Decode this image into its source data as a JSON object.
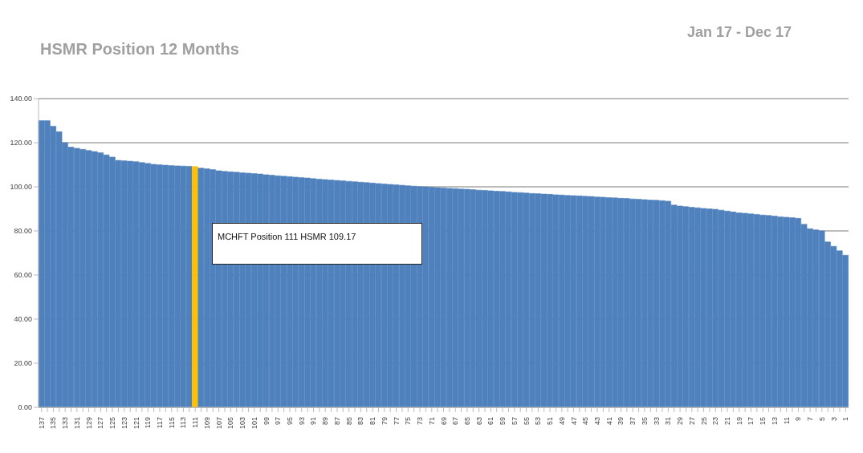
{
  "chart_data": {
    "type": "bar",
    "title": "HSMR Position 12 Months",
    "subtitle": "Jan 17 - Dec 17",
    "annotations": [
      "MCHFT Position 111 HSMR 109.17"
    ],
    "categories": [
      "137",
      null,
      "135",
      null,
      "133",
      null,
      "131",
      null,
      "129",
      null,
      "127",
      null,
      "125",
      null,
      "123",
      null,
      "121",
      null,
      "119",
      null,
      "117",
      null,
      "115",
      null,
      "113",
      null,
      "111",
      null,
      "109",
      null,
      "107",
      null,
      "105",
      null,
      "103",
      null,
      "101",
      null,
      "99",
      null,
      "97",
      null,
      "95",
      null,
      "93",
      null,
      "91",
      null,
      "89",
      null,
      "87",
      null,
      "85",
      null,
      "83",
      null,
      "81",
      null,
      "79",
      null,
      "77",
      null,
      "75",
      null,
      "73",
      null,
      "71",
      null,
      "69",
      null,
      "67",
      null,
      "65",
      null,
      "63",
      null,
      "61",
      null,
      "59",
      null,
      "57",
      null,
      "55",
      null,
      "53",
      null,
      "51",
      null,
      "49",
      null,
      "47",
      null,
      "45",
      null,
      "43",
      null,
      "41",
      null,
      "39",
      null,
      "37",
      null,
      "35",
      null,
      "33",
      null,
      "31",
      null,
      "29",
      null,
      "27",
      null,
      "25",
      null,
      "23",
      null,
      "21",
      null,
      "19",
      null,
      "17",
      null,
      "15",
      null,
      "13",
      null,
      "11",
      null,
      "9",
      null,
      "7",
      null,
      "5",
      null,
      "3",
      null,
      "1"
    ],
    "values": [
      130,
      130,
      127.5,
      125,
      120,
      118,
      117.5,
      117,
      116.5,
      116,
      115.5,
      114.5,
      113.5,
      112,
      111.8,
      111.6,
      111.4,
      111,
      110.6,
      110.2,
      110,
      109.8,
      109.6,
      109.5,
      109.4,
      109.3,
      109.17,
      108.5,
      108.2,
      107.8,
      107.3,
      107,
      106.8,
      106.6,
      106.4,
      106.2,
      106,
      105.8,
      105.5,
      105.3,
      105,
      104.8,
      104.6,
      104.4,
      104.2,
      104,
      103.7,
      103.5,
      103.3,
      103.1,
      102.9,
      102.7,
      102.5,
      102.3,
      102.1,
      101.9,
      101.7,
      101.5,
      101.3,
      101.1,
      100.9,
      100.7,
      100.5,
      100.3,
      100.1,
      100,
      99.8,
      99.6,
      99.5,
      99.3,
      99.2,
      99,
      98.9,
      98.7,
      98.5,
      98.4,
      98.2,
      98,
      97.9,
      97.7,
      97.5,
      97.4,
      97.2,
      97,
      96.9,
      96.7,
      96.6,
      96.4,
      96.3,
      96.1,
      96,
      95.9,
      95.7,
      95.6,
      95.4,
      95.3,
      95.1,
      95,
      94.8,
      94.7,
      94.5,
      94.4,
      94.2,
      94,
      93.9,
      93.7,
      93.5,
      91.7,
      91.3,
      91,
      90.7,
      90.5,
      90.2,
      90,
      89.8,
      89.4,
      89,
      88.6,
      88.2,
      88,
      87.7,
      87.5,
      87.2,
      87,
      86.7,
      86.4,
      86.2,
      86,
      85.7,
      83,
      81,
      80.5,
      80,
      75,
      73,
      71,
      69
    ],
    "colors": [
      "#4f81bd",
      "#4f81bd",
      "#4f81bd",
      "#4f81bd",
      "#4f81bd",
      "#4f81bd",
      "#4f81bd",
      "#4f81bd",
      "#4f81bd",
      "#4f81bd",
      "#4f81bd",
      "#4f81bd",
      "#4f81bd",
      "#4f81bd",
      "#4f81bd",
      "#4f81bd",
      "#4f81bd",
      "#4f81bd",
      "#4f81bd",
      "#4f81bd",
      "#4f81bd",
      "#4f81bd",
      "#4f81bd",
      "#4f81bd",
      "#4f81bd",
      "#4f81bd",
      "#ffc000",
      "#4f81bd",
      "#4f81bd",
      "#4f81bd",
      "#4f81bd",
      "#4f81bd",
      "#4f81bd",
      "#4f81bd",
      "#4f81bd",
      "#4f81bd",
      "#4f81bd",
      "#4f81bd",
      "#4f81bd",
      "#4f81bd",
      "#4f81bd",
      "#4f81bd",
      "#4f81bd",
      "#4f81bd",
      "#4f81bd",
      "#4f81bd",
      "#4f81bd",
      "#4f81bd",
      "#4f81bd",
      "#4f81bd",
      "#4f81bd",
      "#4f81bd",
      "#4f81bd",
      "#4f81bd",
      "#4f81bd",
      "#4f81bd",
      "#4f81bd",
      "#4f81bd",
      "#4f81bd",
      "#4f81bd",
      "#4f81bd",
      "#4f81bd",
      "#4f81bd",
      "#4f81bd",
      "#4f81bd",
      "#4f81bd",
      "#4f81bd",
      "#4f81bd",
      "#4f81bd",
      "#4f81bd",
      "#4f81bd",
      "#4f81bd",
      "#4f81bd",
      "#4f81bd",
      "#4f81bd",
      "#4f81bd",
      "#4f81bd",
      "#4f81bd",
      "#4f81bd",
      "#4f81bd",
      "#4f81bd",
      "#4f81bd",
      "#4f81bd",
      "#4f81bd",
      "#4f81bd",
      "#4f81bd",
      "#4f81bd",
      "#4f81bd",
      "#4f81bd",
      "#4f81bd",
      "#4f81bd",
      "#4f81bd",
      "#4f81bd",
      "#4f81bd",
      "#4f81bd",
      "#4f81bd",
      "#4f81bd",
      "#4f81bd",
      "#4f81bd",
      "#4f81bd",
      "#4f81bd",
      "#4f81bd",
      "#4f81bd",
      "#4f81bd",
      "#4f81bd",
      "#4f81bd",
      "#4f81bd",
      "#4f81bd",
      "#4f81bd",
      "#4f81bd",
      "#4f81bd",
      "#4f81bd",
      "#4f81bd",
      "#4f81bd",
      "#4f81bd",
      "#4f81bd",
      "#4f81bd",
      "#4f81bd",
      "#4f81bd",
      "#4f81bd",
      "#4f81bd",
      "#4f81bd",
      "#4f81bd",
      "#4f81bd",
      "#4f81bd",
      "#4f81bd",
      "#4f81bd",
      "#4f81bd",
      "#4f81bd",
      "#4f81bd",
      "#4f81bd",
      "#4f81bd",
      "#4f81bd",
      "#4f81bd",
      "#4f81bd",
      "#4f81bd",
      "#4f81bd"
    ],
    "ylim": [
      0,
      140
    ],
    "yticks": [
      {
        "value": 0,
        "label": "0.00"
      },
      {
        "value": 20,
        "label": "20.00"
      },
      {
        "value": 40,
        "label": "40.00"
      },
      {
        "value": 60,
        "label": "60.00"
      },
      {
        "value": 80,
        "label": "80.00"
      },
      {
        "value": 100,
        "label": "100.00"
      },
      {
        "value": 120,
        "label": "120.00"
      },
      {
        "value": 140,
        "label": "140.00"
      }
    ],
    "grid": "y"
  }
}
